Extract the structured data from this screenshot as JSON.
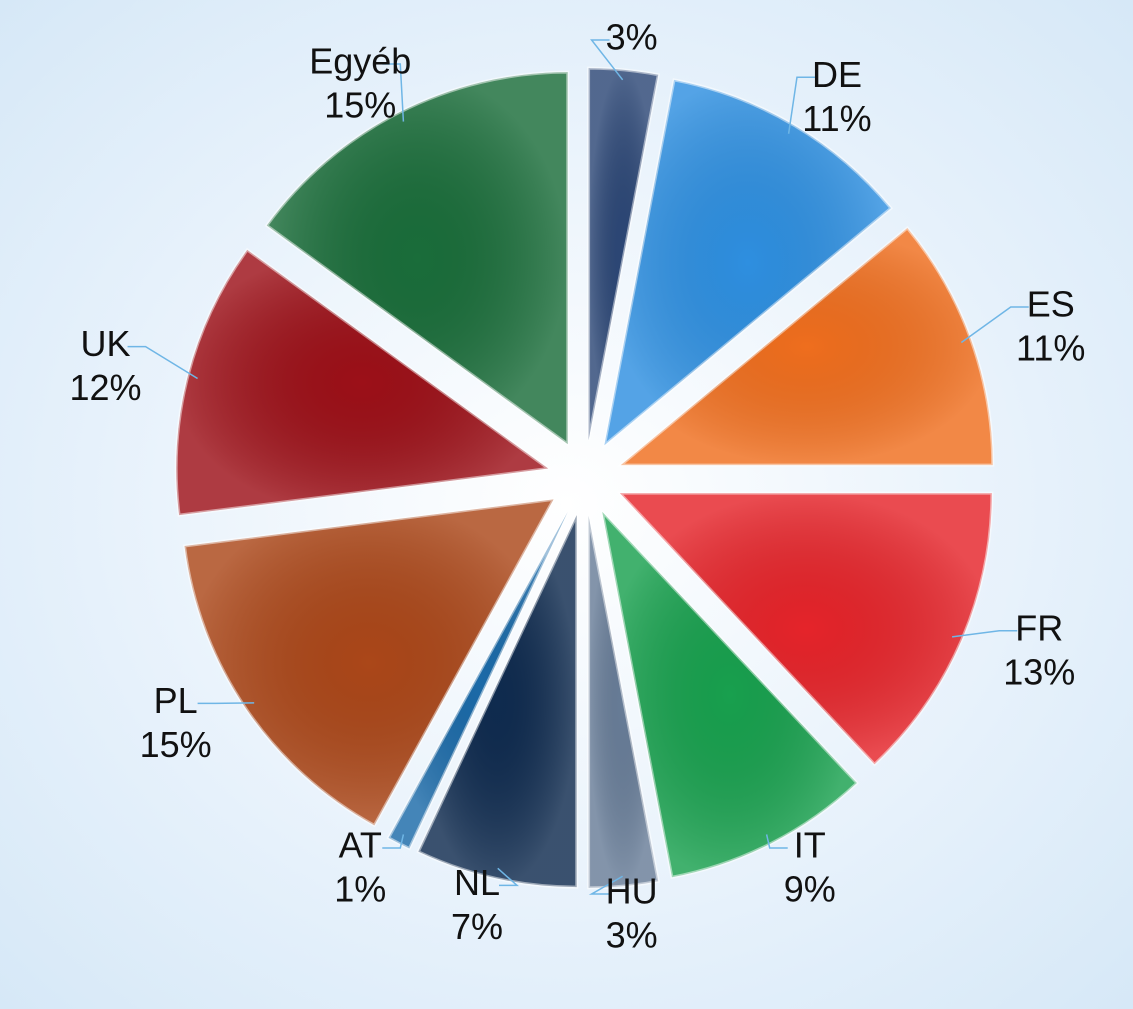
{
  "chart_data": {
    "type": "pie",
    "categories": [
      null,
      "DE",
      "ES",
      "FR",
      "IT",
      "HU",
      "NL",
      "AT",
      "PL",
      "UK",
      "Egyéb"
    ],
    "values": [
      3,
      11,
      11,
      13,
      9,
      3,
      7,
      1,
      15,
      12,
      15
    ],
    "value_labels": [
      "3%",
      "11%",
      "11%",
      "13%",
      "9%",
      "3%",
      "7%",
      "1%",
      "15%",
      "12%",
      "15%"
    ],
    "colors": [
      "#2c4776",
      "#2e8fe0",
      "#ef6e1e",
      "#e5242a",
      "#18a04e",
      "#687d98",
      "#0f2b4f",
      "#1b6aa8",
      "#ab4719",
      "#9c1018",
      "#1a6d3a"
    ]
  }
}
